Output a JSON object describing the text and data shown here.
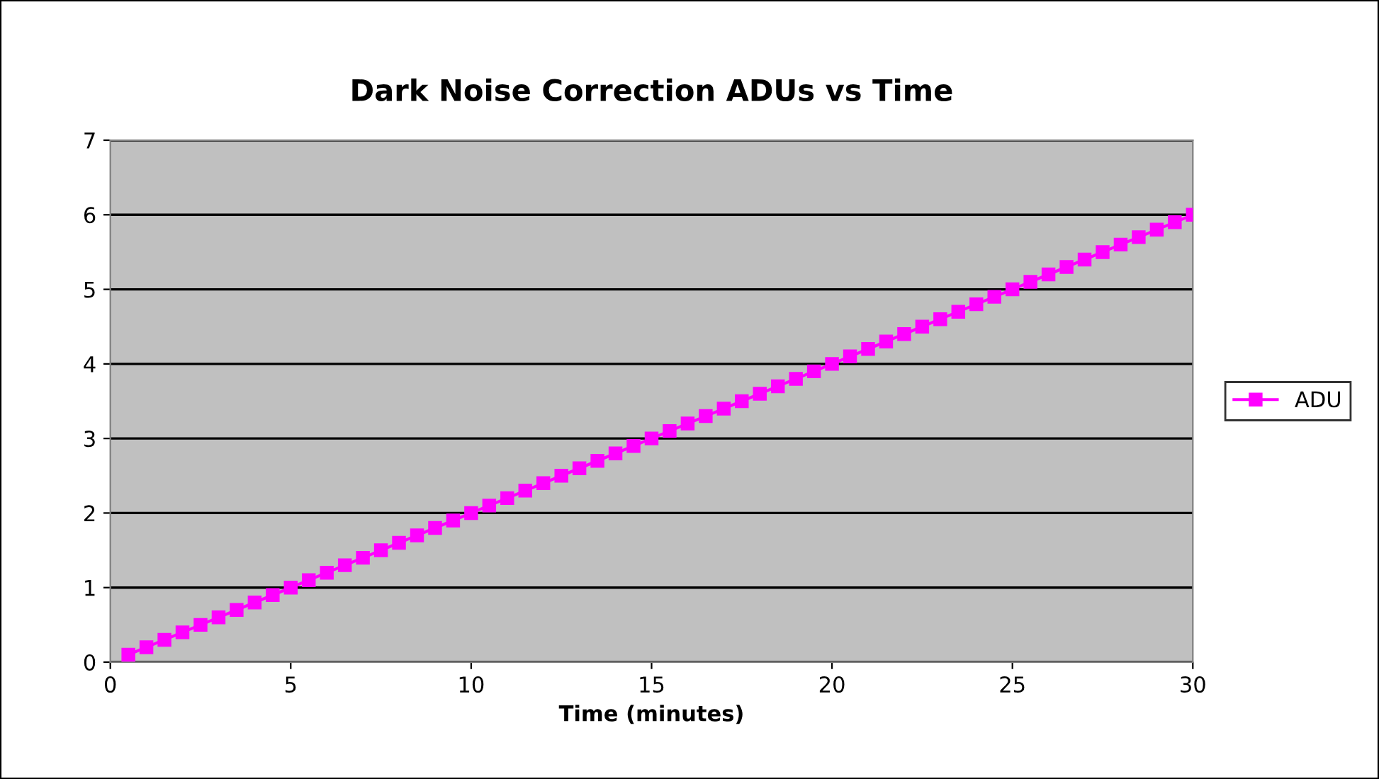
{
  "chart_data": {
    "type": "line",
    "title": "Dark Noise Correction ADUs vs Time",
    "xlabel": "Time (minutes)",
    "x": [
      0.5,
      1,
      1.5,
      2,
      2.5,
      3,
      3.5,
      4,
      4.5,
      5,
      5.5,
      6,
      6.5,
      7,
      7.5,
      8,
      8.5,
      9,
      9.5,
      10,
      10.5,
      11,
      11.5,
      12,
      12.5,
      13,
      13.5,
      14,
      14.5,
      15,
      15.5,
      16,
      16.5,
      17,
      17.5,
      18,
      18.5,
      19,
      19.5,
      20,
      20.5,
      21,
      21.5,
      22,
      22.5,
      23,
      23.5,
      24,
      24.5,
      25,
      25.5,
      26,
      26.5,
      27,
      27.5,
      28,
      28.5,
      29,
      29.5,
      30
    ],
    "series": [
      {
        "name": "ADU",
        "color": "#ff00ff",
        "values": [
          0.1,
          0.2,
          0.3,
          0.4,
          0.5,
          0.6,
          0.7,
          0.8,
          0.9,
          1.0,
          1.1,
          1.2,
          1.3,
          1.4,
          1.5,
          1.6,
          1.7,
          1.8,
          1.9,
          2.0,
          2.1,
          2.2,
          2.3,
          2.4,
          2.5,
          2.6,
          2.7,
          2.8,
          2.9,
          3.0,
          3.1,
          3.2,
          3.3,
          3.4,
          3.5,
          3.6,
          3.7,
          3.8,
          3.9,
          4.0,
          4.1,
          4.2,
          4.3,
          4.4,
          4.5,
          4.6,
          4.7,
          4.8,
          4.9,
          5.0,
          5.1,
          5.2,
          5.3,
          5.4,
          5.5,
          5.6,
          5.7,
          5.8,
          5.9,
          6.0
        ]
      }
    ],
    "xlim": [
      0,
      30
    ],
    "xticks": [
      0,
      5,
      10,
      15,
      20,
      25,
      30
    ],
    "ylim": [
      0,
      7
    ],
    "yticks": [
      0,
      1,
      2,
      3,
      4,
      5,
      6,
      7
    ],
    "grid": "y",
    "legend": "right",
    "marker": "square",
    "line_style": "solid"
  }
}
